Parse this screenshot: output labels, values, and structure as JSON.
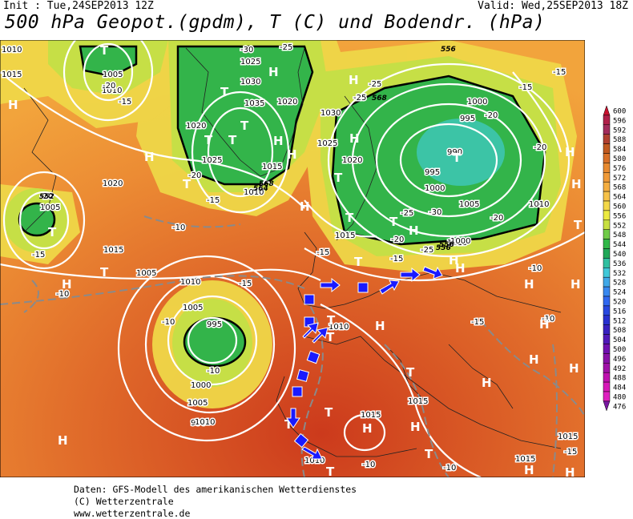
{
  "header": {
    "init": "Init : Tue,24SEP2013 12Z",
    "valid": "Valid: Wed,25SEP2013 18Z",
    "title": "500 hPa Geopot.(gpdm), T (C) und Bodendr. (hPa)"
  },
  "footer": {
    "line1": "Daten: GFS-Modell des amerikanischen Wetterdienstes",
    "line2": "(C) Wetterzentrale",
    "line3": "www.wetterzentrale.de"
  },
  "legend": {
    "values": [
      "600",
      "596",
      "592",
      "588",
      "584",
      "580",
      "576",
      "572",
      "568",
      "564",
      "560",
      "556",
      "552",
      "548",
      "544",
      "540",
      "536",
      "532",
      "528",
      "524",
      "520",
      "516",
      "512",
      "508",
      "504",
      "500",
      "496",
      "492",
      "488",
      "484",
      "480",
      "476"
    ],
    "colors": [
      "#c8102e",
      "#b0204a",
      "#a22c5c",
      "#b04030",
      "#c05a20",
      "#d87028",
      "#e88a30",
      "#f09a38",
      "#f5ae40",
      "#f7c248",
      "#f4d848",
      "#ecea40",
      "#c8e040",
      "#70cc48",
      "#30b848",
      "#20a858",
      "#30c0a0",
      "#40c8d8",
      "#40a8e8",
      "#3888f0",
      "#3068f0",
      "#2848e0",
      "#2830d0",
      "#3820c0",
      "#5018b8",
      "#7010b0",
      "#8810a8",
      "#a010a8",
      "#c010b0",
      "#d818b8",
      "#e020c0",
      "#7818a0"
    ]
  },
  "map": {
    "pressure_labels": [
      {
        "t": "1010"
      },
      {
        "t": "1015"
      },
      {
        "t": "1005"
      },
      {
        "t": "1010"
      },
      {
        "t": "1025"
      },
      {
        "t": "1030"
      },
      {
        "t": "1035"
      },
      {
        "t": "1020"
      },
      {
        "t": "1020"
      },
      {
        "t": "1025"
      },
      {
        "t": "1015"
      },
      {
        "t": "1010"
      },
      {
        "t": "1030"
      },
      {
        "t": "1025"
      },
      {
        "t": "1020"
      },
      {
        "t": "1015"
      },
      {
        "t": "1000"
      },
      {
        "t": "995"
      },
      {
        "t": "990"
      },
      {
        "t": "995"
      },
      {
        "t": "1000"
      },
      {
        "t": "1005"
      },
      {
        "t": "1010"
      },
      {
        "t": "1015"
      },
      {
        "t": "1020"
      },
      {
        "t": "1005"
      },
      {
        "t": "1015"
      },
      {
        "t": "1005"
      },
      {
        "t": "1010"
      },
      {
        "t": "1005"
      },
      {
        "t": "995"
      },
      {
        "t": "990"
      },
      {
        "t": "1000"
      },
      {
        "t": "1005"
      },
      {
        "t": "1010"
      },
      {
        "t": "1010"
      },
      {
        "t": "1015"
      },
      {
        "t": "1015"
      },
      {
        "t": "1010"
      },
      {
        "t": "1015"
      },
      {
        "t": "1015"
      },
      {
        "t": "1000"
      }
    ],
    "temp_labels": [
      {
        "t": "-20"
      },
      {
        "t": "-15"
      },
      {
        "t": "-30"
      },
      {
        "t": "-25"
      },
      {
        "t": "-25"
      },
      {
        "t": "-25"
      },
      {
        "t": "-20"
      },
      {
        "t": "-15"
      },
      {
        "t": "-15"
      },
      {
        "t": "-20"
      },
      {
        "t": "-15"
      },
      {
        "t": "-10"
      },
      {
        "t": "-20"
      },
      {
        "t": "-10"
      },
      {
        "t": "-15"
      },
      {
        "t": "-10"
      },
      {
        "t": "-15"
      },
      {
        "t": "-20"
      },
      {
        "t": "-25"
      },
      {
        "t": "-30"
      },
      {
        "t": "-25"
      },
      {
        "t": "-20"
      },
      {
        "t": "-15"
      },
      {
        "t": "-15"
      },
      {
        "t": "-15"
      },
      {
        "t": "-10"
      },
      {
        "t": "-10"
      },
      {
        "t": "-10"
      },
      {
        "t": "-10"
      },
      {
        "t": "-10"
      },
      {
        "t": "-15"
      },
      {
        "t": "-20"
      }
    ],
    "highs_lows": [
      {
        "t": "T"
      },
      {
        "t": "H"
      },
      {
        "t": "H"
      },
      {
        "t": "T"
      },
      {
        "t": "H"
      },
      {
        "t": "T"
      },
      {
        "t": "T"
      },
      {
        "t": "H"
      },
      {
        "t": "T"
      },
      {
        "t": "H"
      },
      {
        "t": "T"
      },
      {
        "t": "H"
      },
      {
        "t": "H"
      },
      {
        "t": "T"
      },
      {
        "t": "H"
      },
      {
        "t": "T"
      },
      {
        "t": "H"
      },
      {
        "t": "T"
      },
      {
        "t": "T"
      },
      {
        "t": "H"
      },
      {
        "t": "T"
      },
      {
        "t": "H"
      },
      {
        "t": "H"
      },
      {
        "t": "H"
      },
      {
        "t": "H"
      },
      {
        "t": "T"
      },
      {
        "t": "H"
      },
      {
        "t": "H"
      },
      {
        "t": "H"
      },
      {
        "t": "T"
      },
      {
        "t": "T"
      },
      {
        "t": "H"
      },
      {
        "t": "T"
      },
      {
        "t": "H"
      },
      {
        "t": "H"
      },
      {
        "t": "T"
      },
      {
        "t": "T"
      },
      {
        "t": "H"
      },
      {
        "t": "H"
      },
      {
        "t": "T"
      },
      {
        "t": "H"
      },
      {
        "t": "T"
      },
      {
        "t": "H"
      },
      {
        "t": "T"
      },
      {
        "t": "T"
      },
      {
        "t": "H"
      },
      {
        "t": "H"
      }
    ],
    "small_labels": [
      {
        "t": "552"
      },
      {
        "t": "556"
      },
      {
        "t": "568"
      },
      {
        "t": "568"
      },
      {
        "t": "564"
      },
      {
        "t": "556"
      },
      {
        "t": "556"
      }
    ],
    "arrow_color": "#1a1aff"
  }
}
